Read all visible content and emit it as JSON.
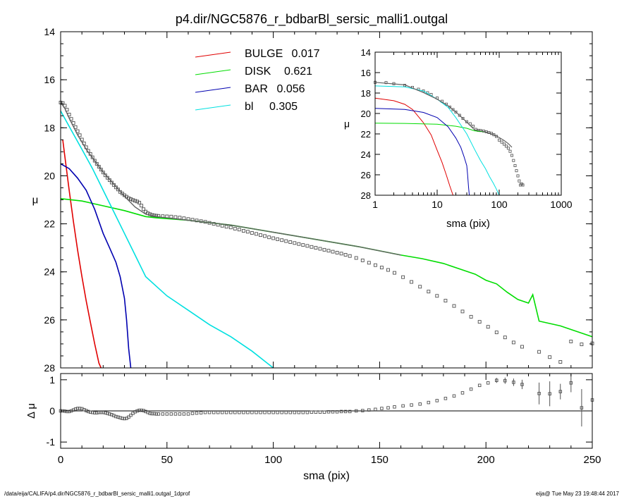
{
  "title": "p4.dir/NGC5876_r_bdbarBl_sersic_malli1.outgal",
  "footer_left": "/data/eija/CALIFA/p4.dir/NGC5876_r_bdbarBl_sersic_malli1.outgal_1dprof",
  "footer_right": "eija@  Tue May 23 19:48:44 2017",
  "colors": {
    "bulge": "#e00000",
    "disk": "#00dd00",
    "bar": "#0000b0",
    "bl": "#00e0e0",
    "model": "#606060"
  },
  "chart_data": [
    {
      "id": "main",
      "type": "line",
      "xlabel": "",
      "ylabel": "μ",
      "xlim": [
        0,
        250
      ],
      "ylim": [
        28,
        14
      ],
      "xticks": [
        0,
        50,
        100,
        150,
        200,
        250
      ],
      "yticks": [
        14,
        16,
        18,
        20,
        22,
        24,
        26,
        28
      ],
      "legend": [
        {
          "label": "BULGE",
          "value": "0.017",
          "color": "#e00000"
        },
        {
          "label": "DISK",
          "value": "0.621",
          "color": "#00dd00"
        },
        {
          "label": "BAR",
          "value": "0.056",
          "color": "#0000b0"
        },
        {
          "label": "bl",
          "value": "0.305",
          "color": "#00e0e0"
        }
      ],
      "series": [
        {
          "name": "BULGE",
          "color": "#e00000",
          "x": [
            1,
            2,
            4,
            6,
            8,
            10,
            12,
            14,
            16,
            18,
            19
          ],
          "y": [
            18.5,
            19.2,
            20.6,
            21.9,
            23.1,
            24.2,
            25.2,
            26.1,
            27.0,
            27.8,
            28.0
          ]
        },
        {
          "name": "DISK",
          "color": "#00dd00",
          "x": [
            0,
            10,
            20,
            30,
            40,
            45,
            60,
            80,
            100,
            120,
            140,
            160,
            170,
            180,
            190,
            195,
            200,
            205,
            210,
            215,
            220,
            222,
            225,
            235,
            240,
            245,
            250
          ],
          "y": [
            20.95,
            21.05,
            21.25,
            21.45,
            21.7,
            21.75,
            21.85,
            22.05,
            22.35,
            22.65,
            22.95,
            23.3,
            23.45,
            23.65,
            23.95,
            24.1,
            24.35,
            24.5,
            24.85,
            25.15,
            25.3,
            24.95,
            26.05,
            26.25,
            26.4,
            26.55,
            26.7
          ]
        },
        {
          "name": "BAR",
          "color": "#0000b0",
          "x": [
            0,
            4,
            8,
            12,
            16,
            20,
            23,
            26,
            28,
            30,
            31,
            32,
            33
          ],
          "y": [
            19.5,
            19.7,
            20.1,
            20.6,
            21.4,
            22.4,
            23.0,
            23.6,
            24.2,
            25.1,
            26.0,
            27.2,
            28.0
          ]
        },
        {
          "name": "bl",
          "color": "#00e0e0",
          "x": [
            0,
            5,
            10,
            15,
            20,
            25,
            30,
            35,
            40,
            45,
            50,
            60,
            70,
            80,
            90,
            100
          ],
          "y": [
            17.3,
            18.1,
            18.9,
            19.7,
            20.6,
            21.5,
            22.4,
            23.3,
            24.2,
            24.6,
            25.0,
            25.6,
            26.2,
            26.7,
            27.3,
            28.0
          ]
        },
        {
          "name": "",
          "color": "#606060",
          "x": [
            0,
            2,
            4,
            6,
            8,
            10,
            12,
            15,
            20,
            25,
            30,
            35,
            40,
            45,
            50,
            60,
            80,
            100,
            120,
            140,
            160
          ],
          "y": [
            16.95,
            17.2,
            17.6,
            17.95,
            18.3,
            18.6,
            18.9,
            19.25,
            19.85,
            20.35,
            20.85,
            21.3,
            21.6,
            21.7,
            21.75,
            21.85,
            22.05,
            22.35,
            22.65,
            22.95,
            23.3
          ]
        }
      ],
      "data_points": {
        "x": [
          0,
          1,
          2,
          3,
          4,
          5,
          6,
          7,
          8,
          9,
          10,
          11,
          12,
          13,
          14,
          15,
          16,
          17,
          18,
          19,
          20,
          21,
          22,
          23,
          24,
          25,
          26,
          27,
          28,
          29,
          30,
          31,
          32,
          33,
          34,
          35,
          36,
          37,
          38,
          39,
          40,
          41,
          42,
          43,
          44,
          45,
          46,
          48,
          50,
          52,
          54,
          56,
          58,
          60,
          62,
          64,
          66,
          68,
          70,
          72,
          74,
          76,
          78,
          80,
          82,
          84,
          86,
          88,
          90,
          92,
          94,
          96,
          98,
          100,
          102,
          104,
          106,
          108,
          110,
          112,
          114,
          116,
          118,
          120,
          122,
          124,
          126,
          128,
          130,
          132,
          134,
          136,
          139,
          142,
          145,
          148,
          151,
          154,
          157,
          161,
          165,
          169,
          173,
          177,
          181,
          185,
          189,
          193,
          197,
          201,
          205,
          209,
          213,
          217,
          225,
          230,
          235,
          240,
          245,
          250
        ],
        "y": [
          16.95,
          16.97,
          17.08,
          17.25,
          17.45,
          17.63,
          17.8,
          17.97,
          18.14,
          18.31,
          18.49,
          18.65,
          18.81,
          18.96,
          19.09,
          19.23,
          19.37,
          19.5,
          19.62,
          19.74,
          19.86,
          19.98,
          20.08,
          20.18,
          20.28,
          20.38,
          20.48,
          20.57,
          20.67,
          20.74,
          20.81,
          20.87,
          20.93,
          20.97,
          21.01,
          21.04,
          21.07,
          21.12,
          21.24,
          21.39,
          21.49,
          21.56,
          21.6,
          21.63,
          21.65,
          21.66,
          21.67,
          21.68,
          21.69,
          21.7,
          21.72,
          21.74,
          21.77,
          21.8,
          21.83,
          21.86,
          21.89,
          21.92,
          21.96,
          22.0,
          22.04,
          22.08,
          22.12,
          22.15,
          22.2,
          22.24,
          22.29,
          22.33,
          22.38,
          22.42,
          22.47,
          22.51,
          22.56,
          22.6,
          22.64,
          22.68,
          22.72,
          22.76,
          22.8,
          22.84,
          22.88,
          22.92,
          22.96,
          23.0,
          23.04,
          23.08,
          23.12,
          23.16,
          23.2,
          23.24,
          23.29,
          23.34,
          23.42,
          23.52,
          23.62,
          23.72,
          23.82,
          23.92,
          24.04,
          24.22,
          24.42,
          24.62,
          24.82,
          25.0,
          25.2,
          25.42,
          25.65,
          25.87,
          26.08,
          26.29,
          26.52,
          26.73,
          26.94,
          27.12,
          27.33,
          27.55,
          27.75,
          26.9,
          27.02,
          26.98
        ]
      }
    },
    {
      "id": "residual",
      "type": "scatter",
      "xlabel": "sma (pix)",
      "ylabel": "Δ μ",
      "xlim": [
        0,
        250
      ],
      "ylim": [
        -1.2,
        1.2
      ],
      "xticks": [
        0,
        50,
        100,
        150,
        200,
        250
      ],
      "yticks": [
        -1,
        0,
        1
      ],
      "zero_line": true,
      "points": {
        "x": [
          0,
          1,
          2,
          3,
          4,
          5,
          6,
          7,
          8,
          9,
          10,
          11,
          12,
          13,
          14,
          15,
          16,
          17,
          18,
          19,
          20,
          21,
          22,
          23,
          24,
          25,
          26,
          27,
          28,
          29,
          30,
          31,
          32,
          33,
          34,
          35,
          36,
          37,
          38,
          39,
          40,
          41,
          42,
          43,
          44,
          45,
          46,
          48,
          50,
          52,
          54,
          56,
          58,
          60,
          62,
          64,
          66,
          68,
          70,
          72,
          74,
          76,
          78,
          80,
          82,
          84,
          86,
          88,
          90,
          92,
          94,
          96,
          98,
          100,
          102,
          104,
          106,
          108,
          110,
          112,
          114,
          116,
          118,
          120,
          122,
          124,
          126,
          128,
          130,
          132,
          134,
          136,
          139,
          142,
          145,
          148,
          151,
          154,
          157,
          161,
          165,
          169,
          173,
          177,
          181,
          185,
          189,
          193,
          197,
          201,
          205,
          209,
          213,
          217,
          225,
          230,
          235,
          240,
          245,
          250
        ],
        "y": [
          0.0,
          0.0,
          -0.01,
          -0.02,
          -0.02,
          0.0,
          0.03,
          0.06,
          0.08,
          0.08,
          0.07,
          0.04,
          0.01,
          -0.02,
          -0.04,
          -0.05,
          -0.06,
          -0.06,
          -0.05,
          -0.05,
          -0.05,
          -0.06,
          -0.08,
          -0.1,
          -0.12,
          -0.15,
          -0.18,
          -0.2,
          -0.22,
          -0.24,
          -0.25,
          -0.24,
          -0.2,
          -0.14,
          -0.08,
          -0.03,
          0.0,
          0.02,
          0.02,
          0.01,
          -0.02,
          -0.05,
          -0.08,
          -0.09,
          -0.09,
          -0.1,
          -0.1,
          -0.1,
          -0.1,
          -0.1,
          -0.1,
          -0.1,
          -0.1,
          -0.1,
          -0.08,
          -0.07,
          -0.06,
          -0.05,
          -0.05,
          -0.05,
          -0.05,
          -0.05,
          -0.05,
          -0.05,
          -0.05,
          -0.05,
          -0.05,
          -0.05,
          -0.05,
          -0.05,
          -0.05,
          -0.05,
          -0.05,
          -0.05,
          -0.05,
          -0.05,
          -0.05,
          -0.05,
          -0.05,
          -0.05,
          -0.05,
          -0.05,
          -0.04,
          -0.04,
          -0.04,
          -0.04,
          -0.03,
          -0.03,
          -0.03,
          -0.02,
          -0.02,
          -0.02,
          0.0,
          0.01,
          0.03,
          0.05,
          0.08,
          0.1,
          0.13,
          0.16,
          0.19,
          0.22,
          0.27,
          0.33,
          0.4,
          0.48,
          0.58,
          0.7,
          0.82,
          0.9,
          0.98,
          0.97,
          0.92,
          0.85,
          0.56,
          0.55,
          0.62,
          0.9,
          0.1,
          0.35
        ],
        "err": [
          0,
          0,
          0,
          0,
          0,
          0,
          0,
          0,
          0,
          0,
          0,
          0,
          0,
          0,
          0,
          0,
          0,
          0,
          0,
          0,
          0,
          0,
          0,
          0,
          0,
          0,
          0,
          0,
          0,
          0,
          0,
          0,
          0,
          0,
          0,
          0,
          0,
          0,
          0,
          0,
          0,
          0,
          0,
          0,
          0,
          0,
          0,
          0,
          0,
          0,
          0,
          0,
          0,
          0,
          0,
          0,
          0,
          0,
          0,
          0,
          0,
          0,
          0,
          0,
          0,
          0,
          0,
          0,
          0,
          0,
          0,
          0,
          0,
          0,
          0,
          0,
          0,
          0,
          0,
          0,
          0,
          0,
          0,
          0,
          0,
          0,
          0,
          0,
          0,
          0,
          0,
          0,
          0,
          0,
          0,
          0,
          0,
          0,
          0,
          0,
          0,
          0,
          0,
          0,
          0,
          0,
          0,
          0,
          0,
          0,
          0.08,
          0.1,
          0.12,
          0.15,
          0.35,
          0.4,
          0.25,
          0.3,
          0.6,
          0.45
        ]
      }
    },
    {
      "id": "inset",
      "type": "line",
      "xlabel": "sma (pix)",
      "ylabel": "μ",
      "xscale": "log",
      "xlim": [
        1,
        1000
      ],
      "ylim": [
        28,
        14
      ],
      "xticks": [
        1,
        10,
        100,
        1000
      ],
      "yticks": [
        14,
        16,
        18,
        20,
        22,
        24,
        26,
        28
      ],
      "series": [
        {
          "name": "BULGE",
          "color": "#e00000",
          "x": [
            1,
            2,
            3,
            4,
            6,
            8,
            10,
            12,
            14,
            16,
            18
          ],
          "y": [
            18.5,
            18.75,
            19.1,
            19.6,
            20.9,
            22.1,
            23.6,
            24.8,
            26.0,
            27.1,
            28.0
          ]
        },
        {
          "name": "DISK",
          "color": "#00dd00",
          "x": [
            1,
            3,
            10,
            20,
            30,
            40,
            50,
            60
          ],
          "y": [
            20.95,
            20.97,
            21.05,
            21.25,
            21.45,
            21.7,
            21.75,
            21.8
          ]
        },
        {
          "name": "BAR",
          "color": "#0000b0",
          "x": [
            1,
            3,
            6,
            10,
            15,
            20,
            24,
            27,
            30,
            31,
            32,
            33
          ],
          "y": [
            19.5,
            19.6,
            19.9,
            20.4,
            21.3,
            22.4,
            23.3,
            24.2,
            25.1,
            26.0,
            27.2,
            28.0
          ]
        },
        {
          "name": "bl",
          "color": "#00e0e0",
          "x": [
            1,
            3,
            6,
            10,
            15,
            20,
            30,
            40,
            50,
            60,
            70,
            80,
            90,
            100
          ],
          "y": [
            17.3,
            17.4,
            17.8,
            18.6,
            19.4,
            20.4,
            22.0,
            23.5,
            24.6,
            25.4,
            26.2,
            26.8,
            27.4,
            28.0
          ]
        },
        {
          "name": "",
          "color": "#606060",
          "x": [
            1,
            3,
            6,
            10,
            15,
            20,
            30,
            40,
            50,
            60,
            80,
            100,
            120,
            140,
            160
          ],
          "y": [
            16.95,
            17.2,
            17.95,
            18.6,
            19.25,
            19.85,
            20.85,
            21.6,
            21.7,
            21.8,
            22.05,
            22.35,
            22.65,
            22.95,
            23.3
          ]
        }
      ],
      "data_points": {
        "x": [
          1,
          1.5,
          2,
          3,
          4,
          5,
          6,
          7,
          8,
          10,
          12,
          14,
          16,
          18,
          20,
          23,
          26,
          30,
          34,
          38,
          42,
          46,
          50,
          56,
          62,
          68,
          75,
          82,
          90,
          100,
          110,
          120,
          130,
          140,
          150,
          160,
          170,
          180,
          190,
          200,
          210,
          220,
          230,
          240
        ],
        "y": [
          16.95,
          16.98,
          17.08,
          17.25,
          17.45,
          17.63,
          17.8,
          17.97,
          18.14,
          18.49,
          18.81,
          19.09,
          19.37,
          19.62,
          19.86,
          20.18,
          20.48,
          20.81,
          21.01,
          21.24,
          21.56,
          21.65,
          21.67,
          21.72,
          21.79,
          21.86,
          21.95,
          22.08,
          22.24,
          22.6,
          22.8,
          23.0,
          23.2,
          23.4,
          23.7,
          24.1,
          24.6,
          25.1,
          25.6,
          26.1,
          26.6,
          27.0,
          26.9,
          27.0
        ]
      }
    }
  ]
}
